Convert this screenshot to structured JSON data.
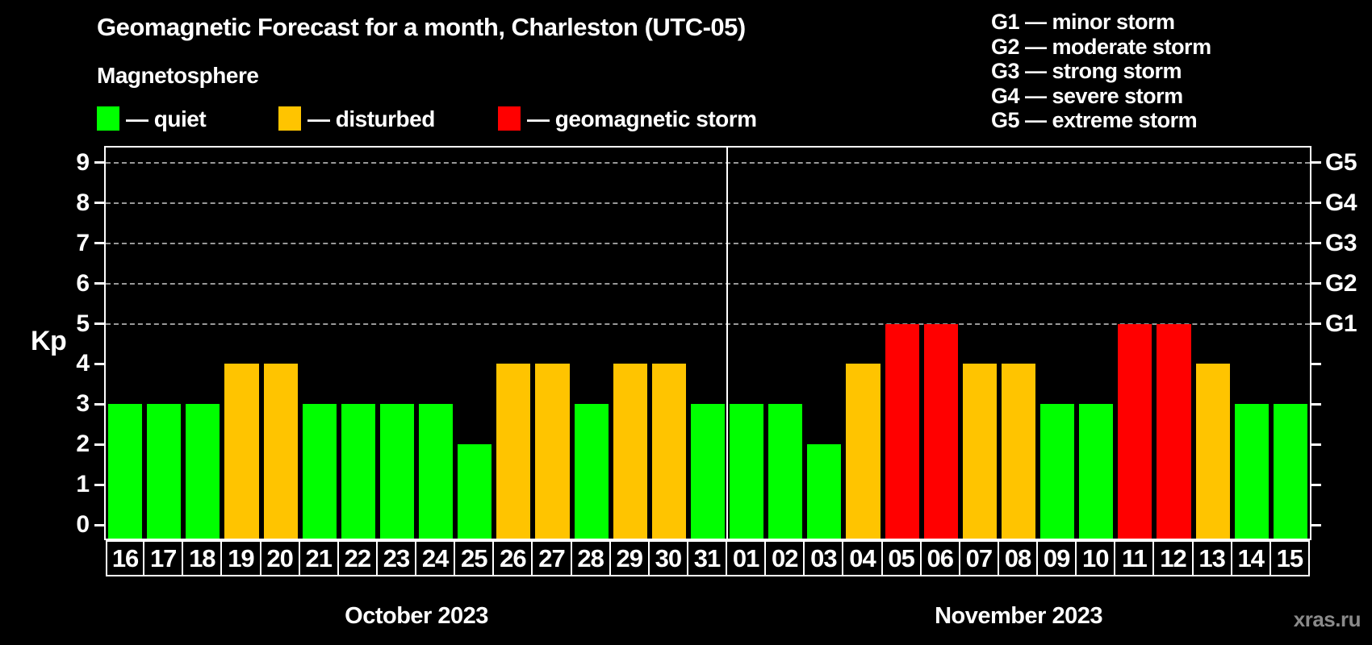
{
  "legend": {
    "title": "Magnetosphere",
    "items": [
      {
        "label": "— quiet",
        "status": "quiet",
        "color": "#00ff00"
      },
      {
        "label": "— disturbed",
        "status": "disturbed",
        "color": "#ffc400"
      },
      {
        "label": "— geomagnetic storm",
        "status": "storm",
        "color": "#ff0000"
      }
    ]
  },
  "g_scale_legend": {
    "items": [
      "G1 — minor storm",
      "G2 — moderate storm",
      "G3 — strong storm",
      "G4 — severe storm",
      "G5 — extreme storm"
    ]
  },
  "watermark": "xras.ru",
  "chart_data": {
    "type": "bar",
    "title": "Geomagnetic Forecast for a month, Charleston (UTC-05)",
    "ylabel": "Kp",
    "xlabel": "",
    "ylim": [
      -0.35,
      9.4
    ],
    "yticks": [
      0,
      1,
      2,
      3,
      4,
      5,
      6,
      7,
      8,
      9
    ],
    "grid_levels": [
      5,
      6,
      7,
      8,
      9
    ],
    "grid_color": "#999999",
    "right_axis": [
      {
        "kp": 5,
        "label": "G1"
      },
      {
        "kp": 6,
        "label": "G2"
      },
      {
        "kp": 7,
        "label": "G3"
      },
      {
        "kp": 8,
        "label": "G4"
      },
      {
        "kp": 9,
        "label": "G5"
      }
    ],
    "status_colors": {
      "quiet": "#00ff00",
      "disturbed": "#ffc400",
      "storm": "#ff0000"
    },
    "months": [
      {
        "label": "October 2023",
        "points": [
          {
            "day": "16",
            "kp": 3,
            "status": "quiet"
          },
          {
            "day": "17",
            "kp": 3,
            "status": "quiet"
          },
          {
            "day": "18",
            "kp": 3,
            "status": "quiet"
          },
          {
            "day": "19",
            "kp": 4,
            "status": "disturbed"
          },
          {
            "day": "20",
            "kp": 4,
            "status": "disturbed"
          },
          {
            "day": "21",
            "kp": 3,
            "status": "quiet"
          },
          {
            "day": "22",
            "kp": 3,
            "status": "quiet"
          },
          {
            "day": "23",
            "kp": 3,
            "status": "quiet"
          },
          {
            "day": "24",
            "kp": 3,
            "status": "quiet"
          },
          {
            "day": "25",
            "kp": 2,
            "status": "quiet"
          },
          {
            "day": "26",
            "kp": 4,
            "status": "disturbed"
          },
          {
            "day": "27",
            "kp": 4,
            "status": "disturbed"
          },
          {
            "day": "28",
            "kp": 3,
            "status": "quiet"
          },
          {
            "day": "29",
            "kp": 4,
            "status": "disturbed"
          },
          {
            "day": "30",
            "kp": 4,
            "status": "disturbed"
          },
          {
            "day": "31",
            "kp": 3,
            "status": "quiet"
          }
        ]
      },
      {
        "label": "November 2023",
        "points": [
          {
            "day": "01",
            "kp": 3,
            "status": "quiet"
          },
          {
            "day": "02",
            "kp": 3,
            "status": "quiet"
          },
          {
            "day": "03",
            "kp": 2,
            "status": "quiet"
          },
          {
            "day": "04",
            "kp": 4,
            "status": "disturbed"
          },
          {
            "day": "05",
            "kp": 5,
            "status": "storm"
          },
          {
            "day": "06",
            "kp": 5,
            "status": "storm"
          },
          {
            "day": "07",
            "kp": 4,
            "status": "disturbed"
          },
          {
            "day": "08",
            "kp": 4,
            "status": "disturbed"
          },
          {
            "day": "09",
            "kp": 3,
            "status": "quiet"
          },
          {
            "day": "10",
            "kp": 3,
            "status": "quiet"
          },
          {
            "day": "11",
            "kp": 5,
            "status": "storm"
          },
          {
            "day": "12",
            "kp": 5,
            "status": "storm"
          },
          {
            "day": "13",
            "kp": 4,
            "status": "disturbed"
          },
          {
            "day": "14",
            "kp": 3,
            "status": "quiet"
          },
          {
            "day": "15",
            "kp": 3,
            "status": "quiet"
          }
        ]
      }
    ]
  }
}
